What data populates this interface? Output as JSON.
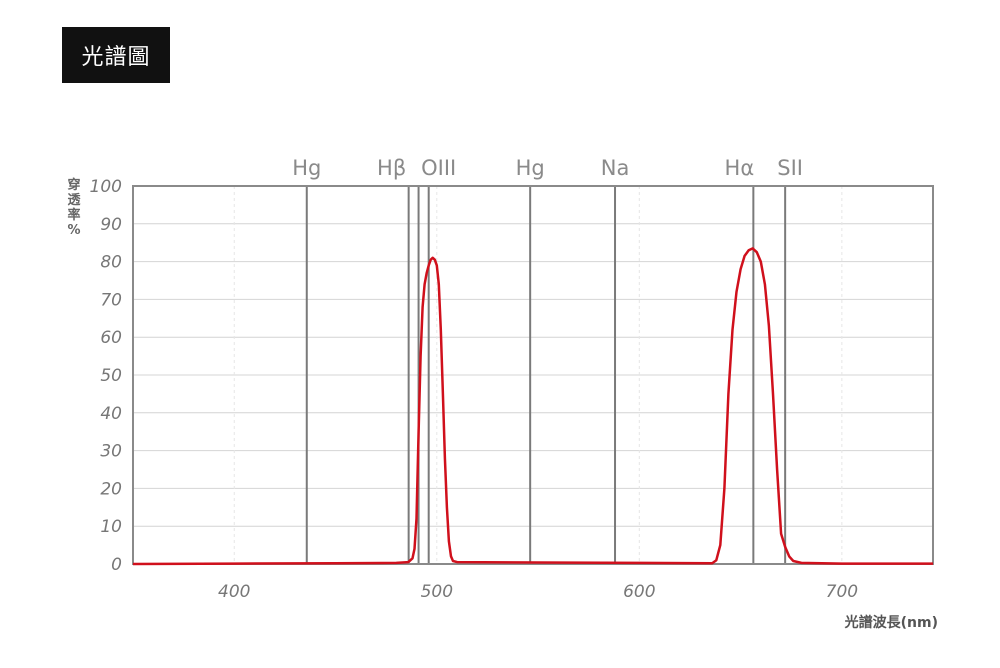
{
  "header": {
    "title": "光譜圖"
  },
  "chart_data": {
    "type": "line",
    "title": "光譜圖",
    "ylabel": "穿透率%",
    "xlabel": "光譜波長(nm)",
    "xlim": [
      350,
      745
    ],
    "ylim": [
      0,
      100
    ],
    "x_ticks": [
      "400",
      "500",
      "600",
      "700"
    ],
    "y_ticks": [
      "100",
      "90",
      "80",
      "70",
      "60",
      "50",
      "40",
      "30",
      "20",
      "10",
      "0"
    ],
    "grid": true,
    "reference_lines": [
      {
        "label": "Hg",
        "x": 435.8
      },
      {
        "label": "Hβ",
        "x": 486.1
      },
      {
        "label": "",
        "x": 491.0
      },
      {
        "label": "OIII",
        "x": 496.0
      },
      {
        "label": "Hg",
        "x": 546.1
      },
      {
        "label": "Na",
        "x": 588.0
      },
      {
        "label": "Hα",
        "x": 656.3
      },
      {
        "label": "SII",
        "x": 672.0
      }
    ],
    "series": [
      {
        "color": "#d0101c",
        "points": [
          [
            350,
            0
          ],
          [
            400,
            0.1
          ],
          [
            450,
            0.2
          ],
          [
            480,
            0.3
          ],
          [
            486,
            0.5
          ],
          [
            488,
            1.5
          ],
          [
            489,
            4
          ],
          [
            490,
            12
          ],
          [
            491,
            35
          ],
          [
            492,
            55
          ],
          [
            493,
            68
          ],
          [
            494,
            74
          ],
          [
            495,
            77
          ],
          [
            496,
            79
          ],
          [
            497,
            80.5
          ],
          [
            498,
            81
          ],
          [
            499,
            80.5
          ],
          [
            500,
            79
          ],
          [
            501,
            74
          ],
          [
            502,
            62
          ],
          [
            503,
            45
          ],
          [
            504,
            28
          ],
          [
            505,
            15
          ],
          [
            506,
            6
          ],
          [
            507,
            2
          ],
          [
            508,
            0.8
          ],
          [
            510,
            0.5
          ],
          [
            550,
            0.4
          ],
          [
            600,
            0.3
          ],
          [
            636,
            0.2
          ],
          [
            638,
            1
          ],
          [
            640,
            5
          ],
          [
            642,
            20
          ],
          [
            644,
            45
          ],
          [
            646,
            62
          ],
          [
            648,
            72
          ],
          [
            650,
            78
          ],
          [
            652,
            81.5
          ],
          [
            654,
            83
          ],
          [
            656,
            83.5
          ],
          [
            658,
            82.5
          ],
          [
            660,
            80
          ],
          [
            662,
            74
          ],
          [
            664,
            63
          ],
          [
            666,
            45
          ],
          [
            668,
            25
          ],
          [
            670,
            8
          ],
          [
            672,
            4.5
          ],
          [
            674,
            2
          ],
          [
            676,
            0.8
          ],
          [
            680,
            0.3
          ],
          [
            700,
            0.1
          ],
          [
            745,
            0.1
          ]
        ]
      }
    ]
  }
}
